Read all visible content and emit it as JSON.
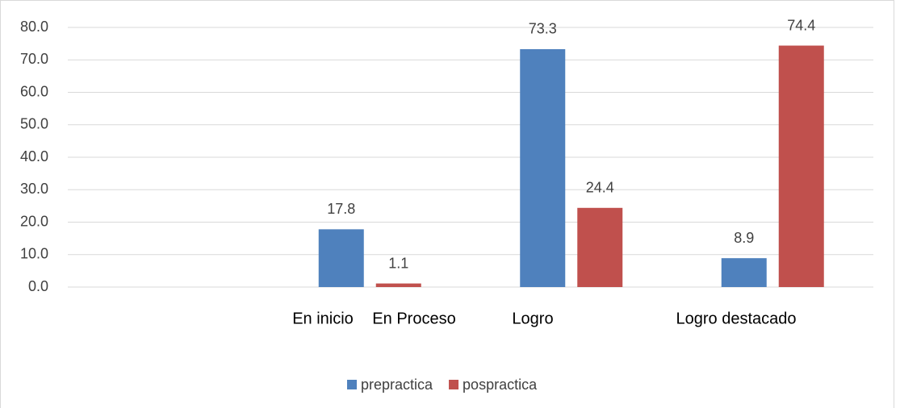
{
  "chart_data": {
    "type": "bar",
    "categories": [
      "En inicio",
      "En Proceso",
      "Logro",
      "Logro destacado"
    ],
    "series": [
      {
        "name": "prepractica",
        "color": "#4f81bd",
        "values": [
          null,
          17.8,
          73.3,
          8.9
        ]
      },
      {
        "name": "pospractica",
        "color": "#c0504d",
        "values": [
          null,
          1.1,
          24.4,
          74.4
        ]
      }
    ],
    "ylim": [
      0,
      80
    ],
    "yticks": [
      {
        "value": 0,
        "label": "0.0"
      },
      {
        "value": 10,
        "label": "10.0"
      },
      {
        "value": 20,
        "label": "20.0"
      },
      {
        "value": 30,
        "label": "30.0"
      },
      {
        "value": 40,
        "label": "40.0"
      },
      {
        "value": 50,
        "label": "50.0"
      },
      {
        "value": 60,
        "label": "60.0"
      },
      {
        "value": 70,
        "label": "70.0"
      },
      {
        "value": 80,
        "label": "80.0"
      }
    ],
    "grid": true,
    "legend": "bottom"
  }
}
